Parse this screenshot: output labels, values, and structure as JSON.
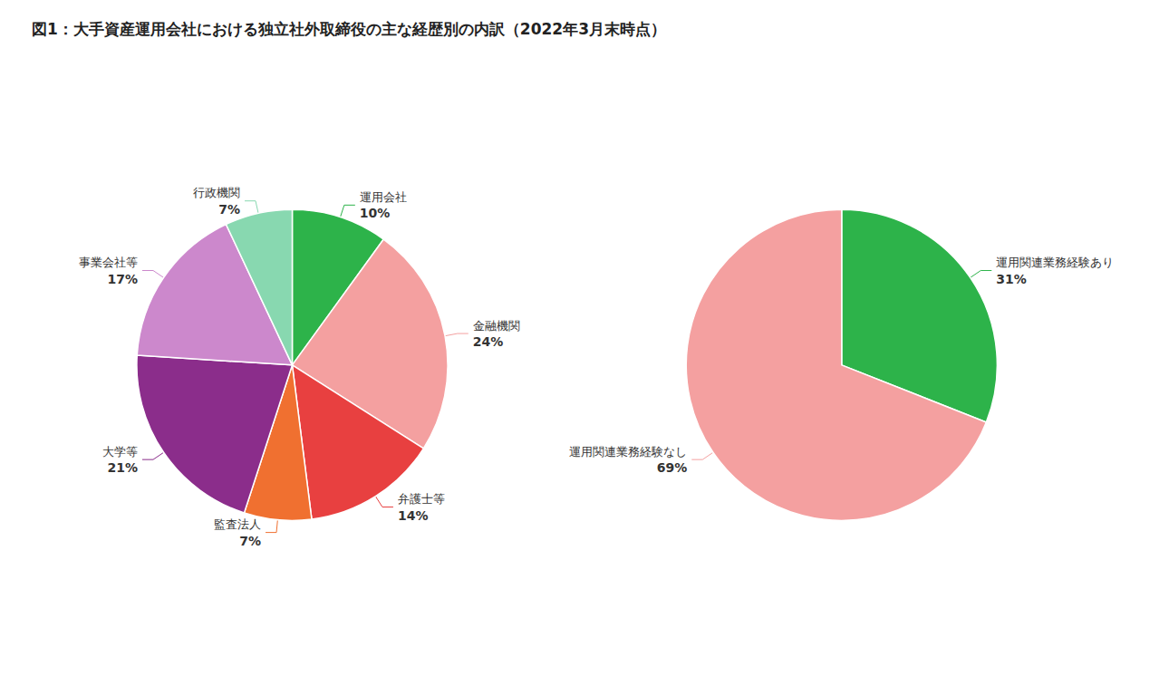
{
  "chart_data": [
    {
      "type": "pie",
      "title": "図1：大手資産運用会社における独立社外取締役の主な経歴別の内訳（2022年3月末時点）",
      "categories": [
        "運用会社",
        "金融機関",
        "弁護士等",
        "監査法人",
        "大学等",
        "事業会社等",
        "行政機関"
      ],
      "values": [
        10,
        24,
        14,
        7,
        21,
        17,
        7
      ],
      "value_labels": [
        "10%",
        "24%",
        "14%",
        "7%",
        "21%",
        "17%",
        "7%"
      ],
      "colors": [
        "#2db34a",
        "#f4a0a0",
        "#e84040",
        "#f07030",
        "#8b2d8b",
        "#cc88cc",
        "#88d8b0"
      ],
      "data_labels": true
    },
    {
      "type": "pie",
      "categories": [
        "運用関連業務経験あり",
        "運用関連業務経験なし"
      ],
      "values": [
        31,
        69
      ],
      "value_labels": [
        "31%",
        "69%"
      ],
      "colors": [
        "#2db34a",
        "#f4a0a0"
      ],
      "data_labels": true
    }
  ]
}
